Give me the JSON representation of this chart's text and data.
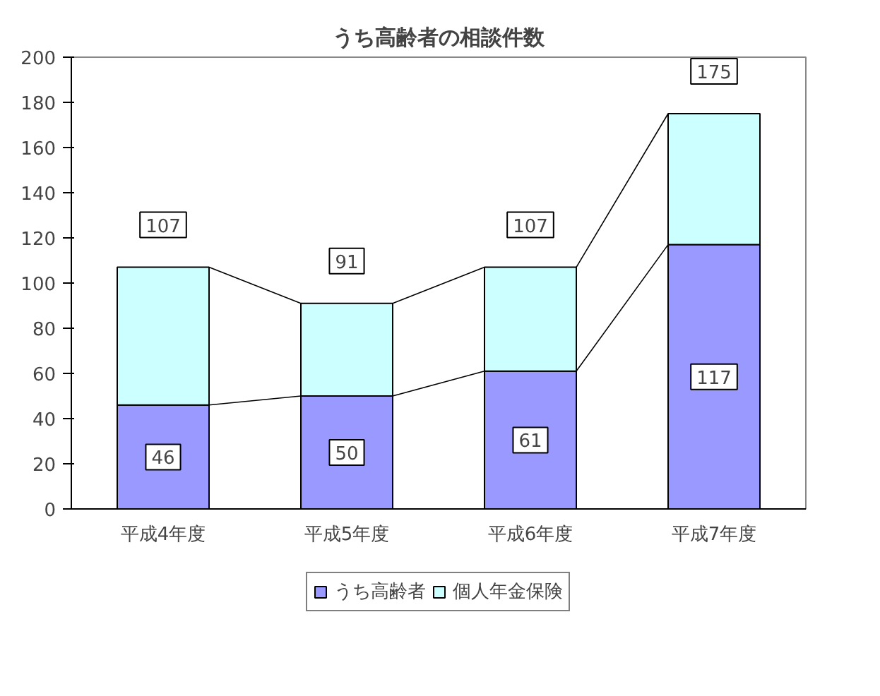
{
  "chart_data": {
    "type": "bar",
    "title": "うち高齢者の相談件数",
    "stacked": true,
    "categories": [
      "平成4年度",
      "平成5年度",
      "平成6年度",
      "平成7年度"
    ],
    "series": [
      {
        "name": "うち高齢者",
        "color": "#9999ff",
        "values": [
          46,
          50,
          61,
          117
        ],
        "value_labels": [
          "46",
          "50",
          "61",
          "117"
        ]
      },
      {
        "name": "個人年金保険",
        "color": "#ccffff",
        "values": [
          61,
          41,
          46,
          58
        ]
      }
    ],
    "totals": [
      "107",
      "91",
      "107",
      "175"
    ],
    "ylim": [
      0,
      200
    ],
    "yticks": [
      0,
      20,
      40,
      60,
      80,
      100,
      120,
      140,
      160,
      180,
      200
    ],
    "grid": false,
    "legend": "bottom"
  }
}
